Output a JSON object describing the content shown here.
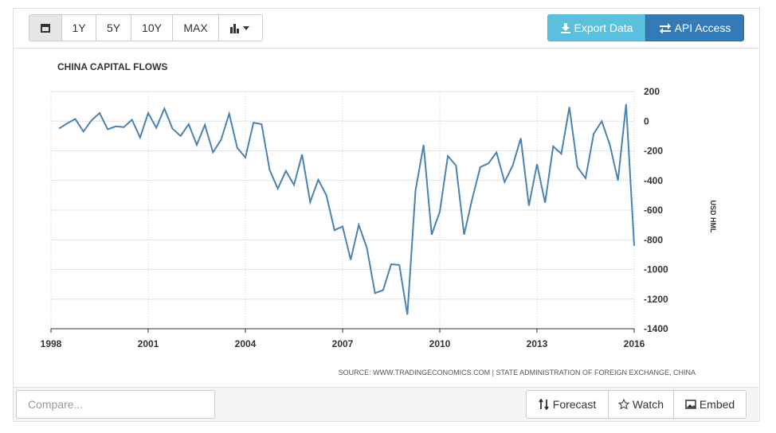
{
  "ui": {
    "range_buttons": [
      "1Y",
      "5Y",
      "10Y",
      "MAX"
    ],
    "export": "Export Data",
    "api": "API Access",
    "compare_placeholder": "Compare...",
    "forecast": "Forecast",
    "watch": "Watch",
    "embed": "Embed"
  },
  "chart_data": {
    "type": "line",
    "title": "CHINA CAPITAL FLOWS",
    "y_label": "USD HML",
    "source": "SOURCE: WWW.TRADINGECONOMICS.COM | STATE ADMINISTRATION OF FOREIGN EXCHANGE, CHINA",
    "xlim": [
      1998,
      2016
    ],
    "xticks": [
      1998,
      2001,
      2004,
      2007,
      2010,
      2013,
      2016
    ],
    "ylim": [
      -1400,
      200
    ],
    "yticks": [
      -1400,
      -1200,
      -1000,
      -800,
      -600,
      -400,
      -200,
      0,
      200
    ],
    "grid": true,
    "x": [
      1998.25,
      1998.5,
      1998.75,
      1999,
      1999.25,
      1999.5,
      1999.75,
      2000,
      2000.25,
      2000.5,
      2000.75,
      2001,
      2001.25,
      2001.5,
      2001.75,
      2002,
      2002.25,
      2002.5,
      2002.75,
      2003,
      2003.25,
      2003.5,
      2003.75,
      2004,
      2004.25,
      2004.5,
      2004.75,
      2005,
      2005.25,
      2005.5,
      2005.75,
      2006,
      2006.25,
      2006.5,
      2006.75,
      2007,
      2007.25,
      2007.5,
      2007.75,
      2008,
      2008.25,
      2008.5,
      2008.75,
      2009,
      2009.25,
      2009.5,
      2009.75,
      2010,
      2010.25,
      2010.5,
      2010.75,
      2011,
      2011.25,
      2011.5,
      2011.75,
      2012,
      2012.25,
      2012.5,
      2012.75,
      2013,
      2013.25,
      2013.5,
      2013.75,
      2014,
      2014.25,
      2014.5,
      2014.75,
      2015,
      2015.25,
      2015.5,
      2015.75,
      2016
    ],
    "series": [
      {
        "name": "China Capital Flows",
        "color": "#4a82b4",
        "values": [
          -50,
          -15,
          15,
          -70,
          5,
          55,
          -55,
          -35,
          -40,
          10,
          -110,
          55,
          -45,
          85,
          -50,
          -100,
          -20,
          -160,
          -25,
          -210,
          -125,
          50,
          -180,
          -245,
          -10,
          -20,
          -330,
          -455,
          -335,
          -430,
          -225,
          -545,
          -395,
          -500,
          -735,
          -710,
          -935,
          -700,
          -855,
          -1160,
          -1140,
          -965,
          -970,
          -1305,
          -470,
          -160,
          -765,
          -610,
          -235,
          -300,
          -765,
          -525,
          -310,
          -285,
          -210,
          -410,
          -300,
          -115,
          -570,
          -290,
          -550,
          -170,
          -220,
          95,
          -310,
          -385,
          -85,
          0,
          -160,
          -400,
          115,
          -840
        ]
      }
    ]
  }
}
